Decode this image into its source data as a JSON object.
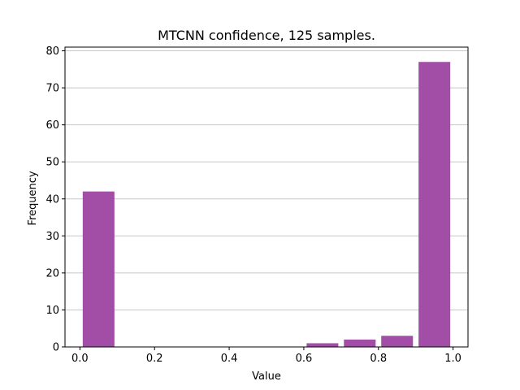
{
  "chart_data": {
    "type": "bar",
    "title": "MTCNN confidence, 125 samples.",
    "xlabel": "Value",
    "ylabel": "Frequency",
    "xlim": [
      -0.04,
      1.04
    ],
    "ylim": [
      0,
      81
    ],
    "bin_width": 0.1,
    "bar_fraction": 0.85,
    "bins": [
      {
        "start": 0.0,
        "value": 42
      },
      {
        "start": 0.1,
        "value": 0
      },
      {
        "start": 0.2,
        "value": 0
      },
      {
        "start": 0.3,
        "value": 0
      },
      {
        "start": 0.4,
        "value": 0
      },
      {
        "start": 0.5,
        "value": 0
      },
      {
        "start": 0.6,
        "value": 1
      },
      {
        "start": 0.7,
        "value": 2
      },
      {
        "start": 0.8,
        "value": 3
      },
      {
        "start": 0.9,
        "value": 77
      }
    ],
    "xticks": [
      "0.0",
      "0.2",
      "0.4",
      "0.6",
      "0.8",
      "1.0"
    ],
    "yticks": [
      "0",
      "10",
      "20",
      "30",
      "40",
      "50",
      "60",
      "70",
      "80"
    ],
    "bar_color": "#a24ea6",
    "grid": "y"
  }
}
